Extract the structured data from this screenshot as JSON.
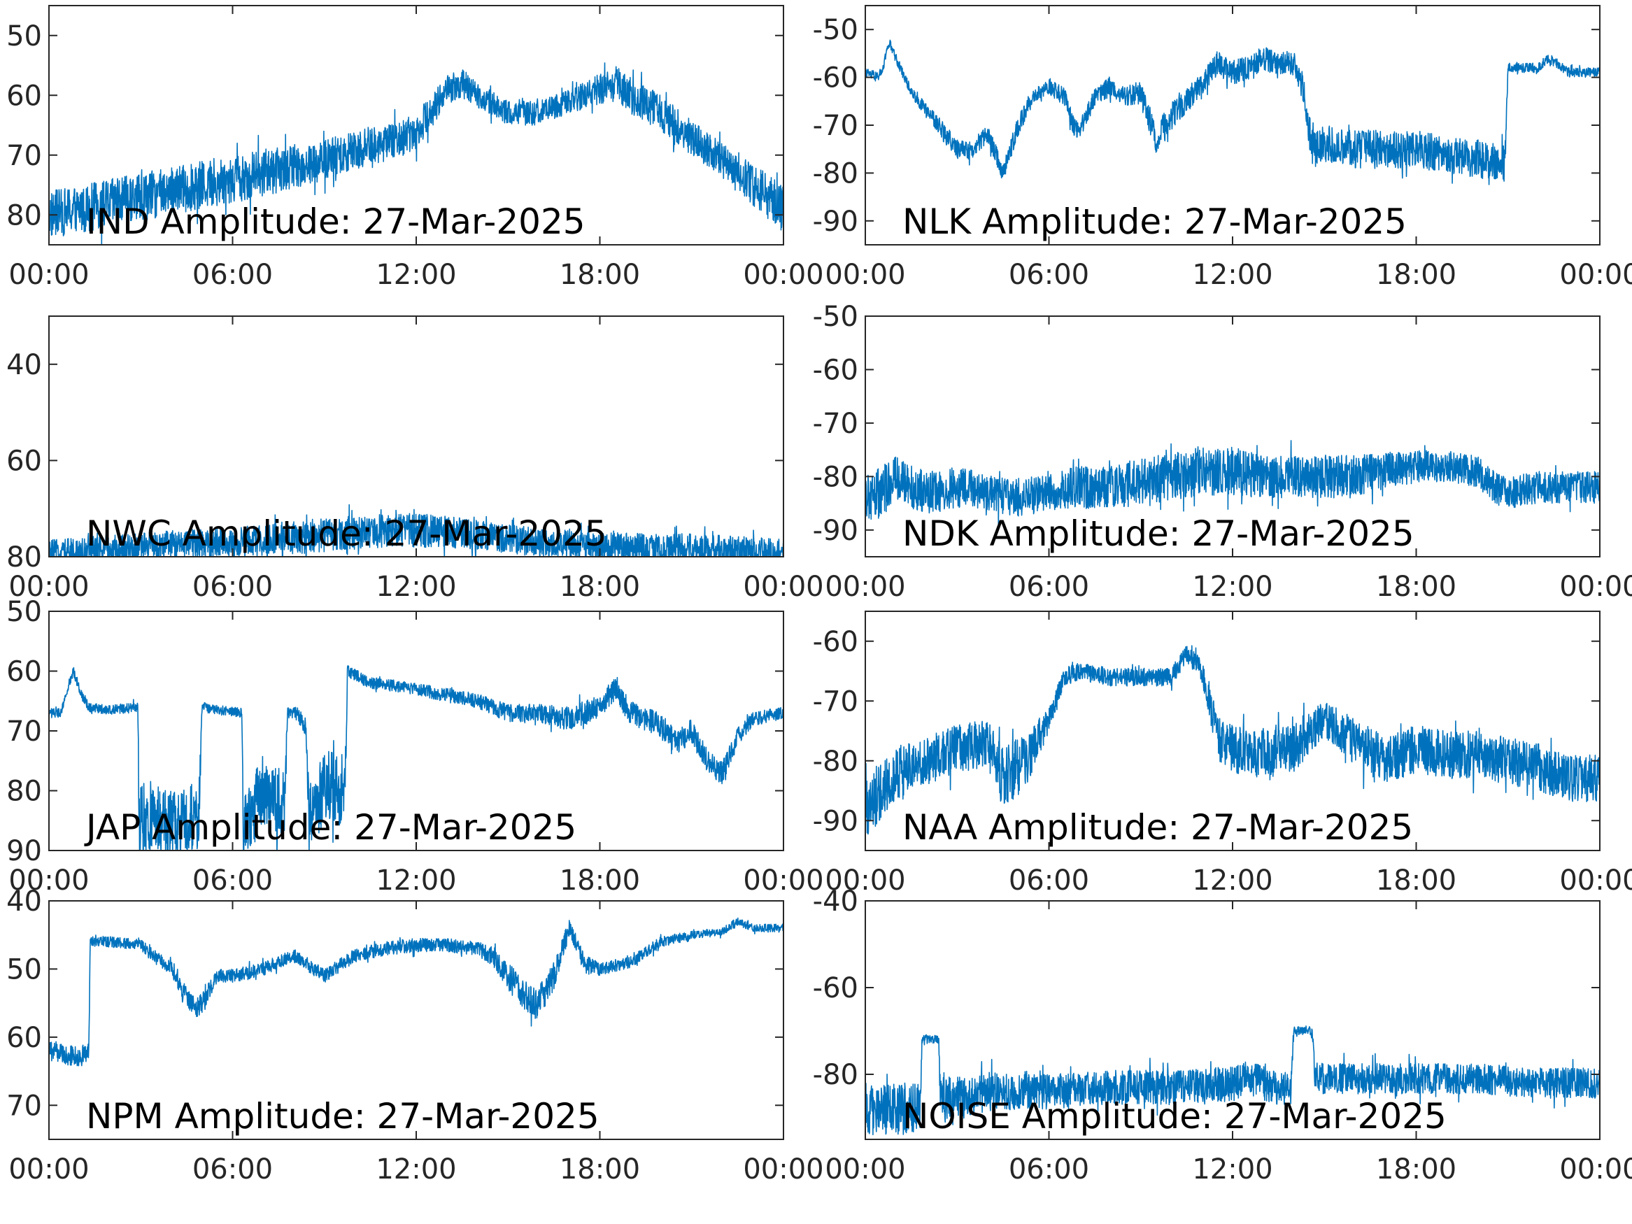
{
  "figure": {
    "background": "#ffffff",
    "axis_color": "#262626",
    "series_color": "#0072bd"
  },
  "chart_data": [
    {
      "type": "line",
      "label": "IND Amplitude: 27-Mar-2025",
      "xticks": [
        "00:00",
        "06:00",
        "12:00",
        "18:00",
        "00:00"
      ],
      "xlim": [
        0,
        24
      ],
      "ylim": [
        -85,
        -45
      ],
      "yticks": [
        -50,
        -60,
        -70,
        -80
      ],
      "ytick_labels": [
        "50",
        "60",
        "70",
        "80"
      ],
      "series": [
        {
          "color": "#0072bd",
          "x": [
            0,
            1,
            2,
            3,
            4,
            5,
            6,
            7,
            8,
            9,
            10,
            11,
            12,
            13,
            13.5,
            14,
            15,
            16,
            17,
            18,
            18.5,
            19,
            20,
            21,
            22,
            23,
            24
          ],
          "y": [
            -80,
            -79,
            -78,
            -77,
            -76,
            -75,
            -74,
            -73,
            -72,
            -71,
            -69,
            -68,
            -66,
            -59,
            -58,
            -60,
            -63,
            -63,
            -61,
            -59,
            -58,
            -60,
            -63,
            -67,
            -71,
            -75,
            -79
          ],
          "noise": [
            4,
            4,
            4,
            4,
            4,
            4,
            4,
            4,
            3.5,
            3.5,
            3.5,
            3,
            3,
            2.5,
            2.5,
            2,
            2,
            2,
            2,
            2.5,
            3,
            3,
            3,
            3,
            3,
            3.5,
            4
          ]
        }
      ]
    },
    {
      "type": "line",
      "label": "NLK Amplitude: 27-Mar-2025",
      "xticks": [
        "00:00",
        "06:00",
        "12:00",
        "18:00",
        "00:00"
      ],
      "xlim": [
        0,
        24
      ],
      "ylim": [
        -95,
        -45
      ],
      "yticks": [
        -50,
        -60,
        -70,
        -80,
        -90
      ],
      "ytick_labels": [
        "-50",
        "-60",
        "-70",
        "-80",
        "-90"
      ],
      "series": [
        {
          "color": "#0072bd",
          "x": [
            0,
            0.4,
            0.6,
            0.7,
            0.8,
            1,
            1.5,
            2,
            2.5,
            3,
            3.5,
            4,
            4.2,
            4.5,
            5,
            5.5,
            6,
            6.5,
            6.8,
            7,
            7.5,
            8,
            8.5,
            9,
            9.5,
            10,
            10.5,
            11,
            11.5,
            12,
            12.5,
            13,
            13.5,
            14,
            14.3,
            14.6,
            15,
            16,
            17,
            18,
            19,
            20,
            20.9,
            21,
            22,
            22.3,
            22.6,
            23,
            24
          ],
          "y": [
            -59,
            -60,
            -58,
            -54,
            -53,
            -56,
            -63,
            -67,
            -71,
            -75,
            -75,
            -72,
            -75,
            -80,
            -70,
            -64,
            -62,
            -64,
            -70,
            -71,
            -64,
            -62,
            -64,
            -63,
            -73,
            -68,
            -65,
            -61,
            -57,
            -59,
            -58,
            -56,
            -57,
            -57,
            -62,
            -75,
            -74,
            -75,
            -75,
            -75,
            -76,
            -77,
            -78,
            -58,
            -58,
            -56,
            -57,
            -59,
            -59
          ],
          "noise": [
            1,
            1,
            1,
            1,
            1,
            1,
            1,
            1.5,
            2,
            2,
            2,
            2,
            2,
            2,
            2,
            1.5,
            1.5,
            2,
            2,
            2,
            2,
            2,
            2,
            2.5,
            3,
            3,
            2.5,
            2.5,
            2.5,
            2.5,
            2.5,
            2.5,
            2.5,
            2.5,
            3,
            4,
            4,
            4,
            4,
            4,
            4,
            4,
            4,
            1,
            1,
            1,
            1,
            1,
            1
          ]
        }
      ]
    },
    {
      "type": "line",
      "label": "NWC Amplitude: 27-Mar-2025",
      "xticks": [
        "00:00",
        "06:00",
        "12:00",
        "18:00",
        "00:00"
      ],
      "xlim": [
        0,
        24
      ],
      "ylim": [
        -80,
        -30
      ],
      "yticks": [
        -40,
        -60,
        -80
      ],
      "ytick_labels": [
        "40",
        "60",
        "80"
      ],
      "series": [
        {
          "color": "#0072bd",
          "x": [
            0,
            2,
            4,
            6,
            8,
            10,
            11,
            12,
            13,
            14,
            16,
            18,
            20,
            22,
            24
          ],
          "y": [
            -79,
            -78.5,
            -77.5,
            -77,
            -76,
            -75,
            -74.5,
            -74.5,
            -75,
            -75.5,
            -77,
            -78,
            -78,
            -78.5,
            -79
          ],
          "noise": [
            2.5,
            3,
            3,
            3,
            3.5,
            3.5,
            3.5,
            3.5,
            3.5,
            3,
            3,
            3,
            3,
            3,
            3
          ]
        }
      ]
    },
    {
      "type": "line",
      "label": "NDK Amplitude: 27-Mar-2025",
      "xticks": [
        "00:00",
        "06:00",
        "12:00",
        "18:00",
        "00:00"
      ],
      "xlim": [
        0,
        24
      ],
      "ylim": [
        -95,
        -50
      ],
      "yticks": [
        -50,
        -60,
        -70,
        -80,
        -90
      ],
      "ytick_labels": [
        "-50",
        "-60",
        "-70",
        "-80",
        "-90"
      ],
      "series": [
        {
          "color": "#0072bd",
          "x": [
            0,
            0.5,
            1,
            1.5,
            2,
            3,
            4,
            5,
            6,
            7,
            8,
            9,
            10,
            11,
            12,
            13,
            14,
            15,
            16,
            17,
            18,
            19,
            20,
            20.5,
            21,
            22,
            23,
            24
          ],
          "y": [
            -84,
            -83,
            -80,
            -82,
            -83,
            -82,
            -83,
            -84,
            -83,
            -82,
            -82,
            -81,
            -80,
            -79,
            -79,
            -80,
            -80,
            -80,
            -80,
            -79,
            -78,
            -78,
            -79,
            -82,
            -83,
            -82,
            -82,
            -82
          ],
          "noise": [
            4,
            5,
            4,
            4,
            4,
            4,
            3.5,
            3.5,
            3.5,
            4,
            4,
            4.5,
            4.5,
            4.5,
            4.5,
            4,
            4,
            4,
            4,
            3.5,
            3,
            3,
            3,
            3,
            3,
            3,
            3,
            3
          ]
        }
      ]
    },
    {
      "type": "line",
      "label": "JAP Amplitude: 27-Mar-2025",
      "xticks": [
        "00:00",
        "06:00",
        "12:00",
        "18:00",
        "00:00"
      ],
      "xlim": [
        0,
        24
      ],
      "ylim": [
        -90,
        -50
      ],
      "yticks": [
        -50,
        -60,
        -70,
        -80,
        -90
      ],
      "ytick_labels": [
        "50",
        "60",
        "70",
        "80",
        "90"
      ],
      "series": [
        {
          "color": "#0072bd",
          "x": [
            0,
            0.4,
            0.6,
            0.8,
            1,
            1.3,
            2,
            2.9,
            2.95,
            3.5,
            4,
            4.5,
            4.9,
            5.0,
            5.5,
            6.3,
            6.35,
            7,
            7.7,
            7.8,
            8.1,
            8.4,
            8.5,
            9,
            9.5,
            9.7,
            9.75,
            10.5,
            12,
            13,
            14,
            15,
            16,
            17,
            18,
            18.5,
            19,
            20,
            20.5,
            21,
            21.5,
            22,
            22.5,
            23,
            24
          ],
          "y": [
            -67,
            -67,
            -63,
            -60,
            -63,
            -66,
            -66.5,
            -66,
            -85,
            -84,
            -86,
            -85,
            -84,
            -66,
            -66.5,
            -67,
            -85,
            -80,
            -83,
            -67,
            -67,
            -70,
            -85,
            -79,
            -80,
            -77,
            -60,
            -62,
            -63,
            -64,
            -65,
            -67,
            -67,
            -68,
            -66,
            -63,
            -67,
            -69,
            -72,
            -70,
            -75,
            -77,
            -71,
            -68,
            -67
          ],
          "noise": [
            0.8,
            0.8,
            0.8,
            0.8,
            0.8,
            0.8,
            0.8,
            0.8,
            6,
            6,
            6,
            6,
            6,
            0.8,
            0.8,
            0.8,
            6,
            6,
            6,
            1,
            1,
            2,
            6,
            6,
            6,
            5,
            1,
            1,
            1,
            1.2,
            1.2,
            1.5,
            1.5,
            2,
            2,
            2,
            2,
            2,
            2,
            2,
            2,
            2,
            1.5,
            1.2,
            1
          ]
        }
      ]
    },
    {
      "type": "line",
      "label": "NAA Amplitude: 27-Mar-2025",
      "xticks": [
        "00:00",
        "06:00",
        "12:00",
        "18:00",
        "00:00"
      ],
      "xlim": [
        0,
        24
      ],
      "ylim": [
        -95,
        -55
      ],
      "yticks": [
        -60,
        -70,
        -80,
        -90
      ],
      "ytick_labels": [
        "-60",
        "-70",
        "-80",
        "-90"
      ],
      "series": [
        {
          "color": "#0072bd",
          "x": [
            0,
            0.5,
            1,
            2,
            3,
            4,
            4.5,
            5,
            5.5,
            6,
            6.5,
            7,
            8,
            9,
            10,
            10.5,
            11,
            11.5,
            12,
            13,
            14,
            15,
            16,
            17,
            18,
            19,
            20,
            21,
            22,
            23,
            24
          ],
          "y": [
            -88,
            -85,
            -82,
            -80,
            -78,
            -77,
            -83,
            -81,
            -78,
            -73,
            -66,
            -65,
            -66,
            -66,
            -66,
            -62,
            -65,
            -76,
            -78,
            -79,
            -78,
            -73,
            -77,
            -80,
            -78,
            -79,
            -79,
            -80,
            -81,
            -83,
            -83
          ],
          "noise": [
            5,
            5,
            4.5,
            4,
            4,
            4,
            5,
            5,
            4,
            2,
            1.5,
            1.5,
            1.5,
            1.5,
            1.5,
            1.5,
            2,
            4,
            4,
            4,
            4,
            3,
            4,
            4,
            4,
            4,
            4,
            4,
            4,
            4,
            4
          ]
        }
      ]
    },
    {
      "type": "line",
      "label": "NPM Amplitude: 27-Mar-2025",
      "xticks": [
        "00:00",
        "06:00",
        "12:00",
        "18:00",
        "00:00"
      ],
      "xlim": [
        0,
        24
      ],
      "ylim": [
        -75,
        -40
      ],
      "yticks": [
        -40,
        -50,
        -60,
        -70
      ],
      "ytick_labels": [
        "40",
        "50",
        "60",
        "70"
      ],
      "series": [
        {
          "color": "#0072bd",
          "x": [
            0,
            1,
            1.3,
            1.35,
            2,
            3,
            4,
            4.5,
            4.8,
            5,
            5.5,
            6,
            7,
            8,
            9,
            10,
            11,
            12,
            13,
            14,
            14.5,
            15,
            15.5,
            16,
            16.5,
            17,
            17.5,
            18,
            19,
            20,
            21,
            22,
            22.5,
            23,
            24
          ],
          "y": [
            -62,
            -63,
            -62,
            -46,
            -46,
            -46.5,
            -50,
            -54,
            -56,
            -55,
            -51,
            -51,
            -50,
            -48,
            -51,
            -48,
            -47,
            -46.5,
            -46.5,
            -47,
            -48,
            -51,
            -54,
            -55,
            -51,
            -44,
            -49,
            -50,
            -49,
            -46,
            -45,
            -44.5,
            -43,
            -44,
            -44
          ],
          "noise": [
            1.5,
            1.5,
            1.5,
            0.8,
            0.8,
            0.8,
            1,
            1.5,
            1.5,
            1.5,
            1,
            1,
            1,
            1,
            1,
            1,
            1,
            1,
            1,
            1,
            1.5,
            2,
            2.5,
            2.5,
            2,
            1.5,
            1,
            1,
            0.8,
            0.8,
            0.6,
            0.6,
            0.6,
            0.6,
            0.6
          ]
        }
      ]
    },
    {
      "type": "line",
      "label": "NOISE Amplitude: 27-Mar-2025",
      "xticks": [
        "00:00",
        "06:00",
        "12:00",
        "18:00",
        "00:00"
      ],
      "xlim": [
        0,
        24
      ],
      "ylim": [
        -95,
        -40
      ],
      "yticks": [
        -40,
        -60,
        -80
      ],
      "ytick_labels": [
        "-40",
        "-60",
        "-80"
      ],
      "series": [
        {
          "color": "#0072bd",
          "x": [
            0,
            1,
            1.8,
            1.85,
            2.4,
            2.45,
            3,
            4,
            6,
            8,
            10,
            12,
            12.5,
            13,
            13.5,
            13.9,
            14.0,
            14.6,
            14.7,
            15,
            16,
            18,
            20,
            22,
            24
          ],
          "y": [
            -88,
            -88,
            -88,
            -72,
            -72,
            -86,
            -85,
            -84,
            -84,
            -83,
            -83,
            -82,
            -81,
            -82,
            -83,
            -83,
            -70,
            -70,
            -81,
            -81,
            -81,
            -81,
            -81,
            -82,
            -82
          ],
          "noise": [
            6,
            6,
            6,
            1,
            1,
            6,
            5,
            4.5,
            4,
            4,
            4,
            4,
            4,
            4,
            4,
            4,
            1,
            1,
            4,
            3.5,
            3.5,
            3.5,
            3.5,
            3.5,
            3.5
          ]
        }
      ]
    }
  ]
}
